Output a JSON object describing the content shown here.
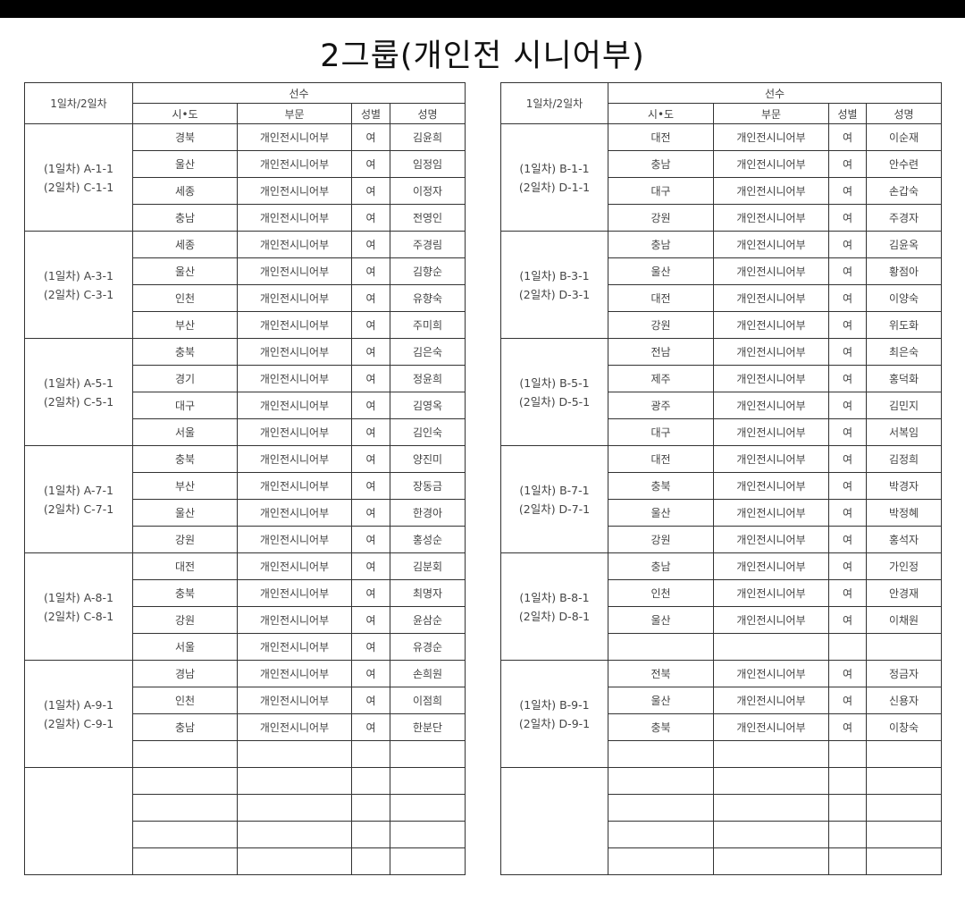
{
  "title": "2그룹(개인전 시니어부)",
  "headers": {
    "day": "1일차/2일차",
    "player": "선수",
    "region": "시•도",
    "division": "부문",
    "gender": "성별",
    "name": "성명"
  },
  "tables": [
    {
      "groups": [
        {
          "label": [
            "(1일차) A-1-1",
            "(2일차) C-1-1"
          ],
          "rows": [
            [
              "경북",
              "개인전시니어부",
              "여",
              "김윤희"
            ],
            [
              "울산",
              "개인전시니어부",
              "여",
              "임정임"
            ],
            [
              "세종",
              "개인전시니어부",
              "여",
              "이정자"
            ],
            [
              "충남",
              "개인전시니어부",
              "여",
              "전영인"
            ]
          ]
        },
        {
          "label": [
            "(1일차) A-3-1",
            "(2일차) C-3-1"
          ],
          "rows": [
            [
              "세종",
              "개인전시니어부",
              "여",
              "주경림"
            ],
            [
              "울산",
              "개인전시니어부",
              "여",
              "김향순"
            ],
            [
              "인천",
              "개인전시니어부",
              "여",
              "유향숙"
            ],
            [
              "부산",
              "개인전시니어부",
              "여",
              "주미희"
            ]
          ]
        },
        {
          "label": [
            "(1일차) A-5-1",
            "(2일차) C-5-1"
          ],
          "rows": [
            [
              "충북",
              "개인전시니어부",
              "여",
              "김은숙"
            ],
            [
              "경기",
              "개인전시니어부",
              "여",
              "정윤희"
            ],
            [
              "대구",
              "개인전시니어부",
              "여",
              "김영옥"
            ],
            [
              "서울",
              "개인전시니어부",
              "여",
              "김인숙"
            ]
          ]
        },
        {
          "label": [
            "(1일차) A-7-1",
            "(2일차) C-7-1"
          ],
          "rows": [
            [
              "충북",
              "개인전시니어부",
              "여",
              "양진미"
            ],
            [
              "부산",
              "개인전시니어부",
              "여",
              "장동금"
            ],
            [
              "울산",
              "개인전시니어부",
              "여",
              "한경아"
            ],
            [
              "강원",
              "개인전시니어부",
              "여",
              "홍성순"
            ]
          ]
        },
        {
          "label": [
            "(1일차) A-8-1",
            "(2일차) C-8-1"
          ],
          "rows": [
            [
              "대전",
              "개인전시니어부",
              "여",
              "김분회"
            ],
            [
              "충북",
              "개인전시니어부",
              "여",
              "최명자"
            ],
            [
              "강원",
              "개인전시니어부",
              "여",
              "윤삼순"
            ],
            [
              "서울",
              "개인전시니어부",
              "여",
              "유경순"
            ]
          ]
        },
        {
          "label": [
            "(1일차) A-9-1",
            "(2일차) C-9-1"
          ],
          "rows": [
            [
              "경남",
              "개인전시니어부",
              "여",
              "손희원"
            ],
            [
              "인천",
              "개인전시니어부",
              "여",
              "이점희"
            ],
            [
              "충남",
              "개인전시니어부",
              "여",
              "한분단"
            ],
            [
              "",
              "",
              "",
              ""
            ]
          ]
        },
        {
          "label": [
            "",
            ""
          ],
          "rows": [
            [
              "",
              "",
              "",
              ""
            ],
            [
              "",
              "",
              "",
              ""
            ],
            [
              "",
              "",
              "",
              ""
            ],
            [
              "",
              "",
              "",
              ""
            ]
          ]
        }
      ]
    },
    {
      "groups": [
        {
          "label": [
            "(1일차) B-1-1",
            "(2일차) D-1-1"
          ],
          "rows": [
            [
              "대전",
              "개인전시니어부",
              "여",
              "이순재"
            ],
            [
              "충남",
              "개인전시니어부",
              "여",
              "안수련"
            ],
            [
              "대구",
              "개인전시니어부",
              "여",
              "손갑숙"
            ],
            [
              "강원",
              "개인전시니어부",
              "여",
              "주경자"
            ]
          ]
        },
        {
          "label": [
            "(1일차) B-3-1",
            "(2일차) D-3-1"
          ],
          "rows": [
            [
              "충남",
              "개인전시니어부",
              "여",
              "김윤옥"
            ],
            [
              "울산",
              "개인전시니어부",
              "여",
              "황점아"
            ],
            [
              "대전",
              "개인전시니어부",
              "여",
              "이양숙"
            ],
            [
              "강원",
              "개인전시니어부",
              "여",
              "위도화"
            ]
          ]
        },
        {
          "label": [
            "(1일차) B-5-1",
            "(2일차) D-5-1"
          ],
          "rows": [
            [
              "전남",
              "개인전시니어부",
              "여",
              "최은숙"
            ],
            [
              "제주",
              "개인전시니어부",
              "여",
              "홍덕화"
            ],
            [
              "광주",
              "개인전시니어부",
              "여",
              "김민지"
            ],
            [
              "대구",
              "개인전시니어부",
              "여",
              "서복임"
            ]
          ]
        },
        {
          "label": [
            "(1일차) B-7-1",
            "(2일차) D-7-1"
          ],
          "rows": [
            [
              "대전",
              "개인전시니어부",
              "여",
              "김정희"
            ],
            [
              "충북",
              "개인전시니어부",
              "여",
              "박경자"
            ],
            [
              "울산",
              "개인전시니어부",
              "여",
              "박정혜"
            ],
            [
              "강원",
              "개인전시니어부",
              "여",
              "홍석자"
            ]
          ]
        },
        {
          "label": [
            "(1일차) B-8-1",
            "(2일차) D-8-1"
          ],
          "rows": [
            [
              "충남",
              "개인전시니어부",
              "여",
              "가인정"
            ],
            [
              "인천",
              "개인전시니어부",
              "여",
              "안경재"
            ],
            [
              "울산",
              "개인전시니어부",
              "여",
              "이채원"
            ],
            [
              "",
              "",
              "",
              ""
            ]
          ]
        },
        {
          "label": [
            "(1일차) B-9-1",
            "(2일차) D-9-1"
          ],
          "rows": [
            [
              "전북",
              "개인전시니어부",
              "여",
              "정금자"
            ],
            [
              "울산",
              "개인전시니어부",
              "여",
              "신용자"
            ],
            [
              "충북",
              "개인전시니어부",
              "여",
              "이창숙"
            ],
            [
              "",
              "",
              "",
              ""
            ]
          ]
        },
        {
          "label": [
            "",
            ""
          ],
          "rows": [
            [
              "",
              "",
              "",
              ""
            ],
            [
              "",
              "",
              "",
              ""
            ],
            [
              "",
              "",
              "",
              ""
            ],
            [
              "",
              "",
              "",
              ""
            ]
          ]
        }
      ]
    }
  ]
}
